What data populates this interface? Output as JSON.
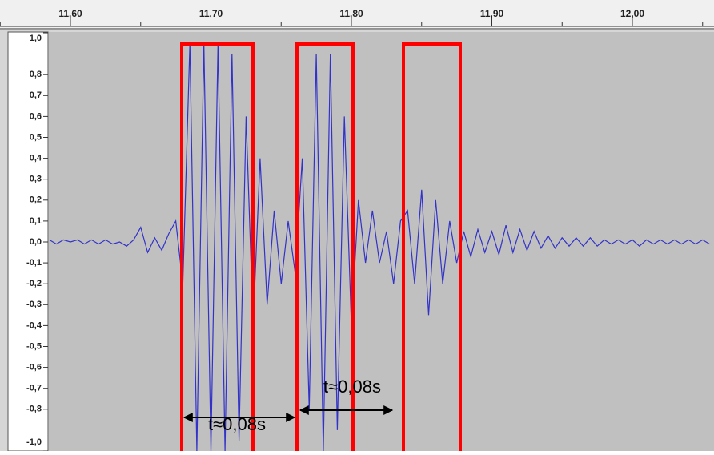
{
  "ruler": {
    "ticks": [
      {
        "value": 11.6,
        "label": "11,60"
      },
      {
        "value": 11.7,
        "label": "11,70"
      },
      {
        "value": 11.8,
        "label": "11,80"
      },
      {
        "value": 11.9,
        "label": "11,90"
      },
      {
        "value": 12.0,
        "label": "12,00"
      }
    ]
  },
  "amplitude_axis": {
    "ticks": [
      {
        "value": 1,
        "label": "1,0"
      },
      {
        "value": 0.8,
        "label": "0,8"
      },
      {
        "value": 0.7,
        "label": "0,7"
      },
      {
        "value": 0.6,
        "label": "0,6"
      },
      {
        "value": 0.5,
        "label": "0,5"
      },
      {
        "value": 0.4,
        "label": "0,4"
      },
      {
        "value": 0.3,
        "label": "0,3"
      },
      {
        "value": 0.2,
        "label": "0,2"
      },
      {
        "value": 0.1,
        "label": "0,1"
      },
      {
        "value": 0,
        "label": "0,0"
      },
      {
        "value": -0.1,
        "label": "-0,1"
      },
      {
        "value": -0.2,
        "label": "-0,2"
      },
      {
        "value": -0.3,
        "label": "-0,3"
      },
      {
        "value": -0.4,
        "label": "-0,4"
      },
      {
        "value": -0.5,
        "label": "-0,5"
      },
      {
        "value": -0.6,
        "label": "-0,6"
      },
      {
        "value": -0.7,
        "label": "-0,7"
      },
      {
        "value": -0.8,
        "label": "-0,8"
      },
      {
        "value": -1,
        "label": "-1,0"
      }
    ]
  },
  "annotations": [
    {
      "label": "t≈0,08s"
    },
    {
      "label": "t≈0,08s"
    }
  ],
  "waveform": {
    "x": [
      11.585,
      11.59,
      11.595,
      11.6,
      11.605,
      11.61,
      11.615,
      11.62,
      11.625,
      11.63,
      11.635,
      11.64,
      11.645,
      11.65,
      11.655,
      11.66,
      11.665,
      11.67,
      11.675,
      11.68,
      11.685,
      11.69,
      11.695,
      11.7,
      11.705,
      11.71,
      11.715,
      11.72,
      11.725,
      11.73,
      11.735,
      11.74,
      11.745,
      11.75,
      11.755,
      11.76,
      11.765,
      11.77,
      11.775,
      11.78,
      11.785,
      11.79,
      11.795,
      11.8,
      11.805,
      11.81,
      11.815,
      11.82,
      11.825,
      11.83,
      11.835,
      11.84,
      11.845,
      11.85,
      11.855,
      11.86,
      11.865,
      11.87,
      11.875,
      11.88,
      11.885,
      11.89,
      11.895,
      11.9,
      11.905,
      11.91,
      11.915,
      11.92,
      11.925,
      11.93,
      11.935,
      11.94,
      11.945,
      11.95,
      11.955,
      11.96,
      11.965,
      11.97,
      11.975,
      11.98,
      11.985,
      11.99,
      11.995,
      12.0,
      12.005,
      12.01,
      12.015,
      12.02,
      12.025,
      12.03,
      12.035,
      12.04,
      12.045,
      12.05,
      12.055
    ],
    "values": [
      0.01,
      -0.01,
      0.01,
      0,
      0.01,
      -0.01,
      0.01,
      -0.01,
      0.01,
      -0.01,
      0,
      -0.02,
      0.01,
      0.07,
      -0.05,
      0.02,
      -0.04,
      0.04,
      0.1,
      -0.2,
      0.95,
      -1,
      0.95,
      -1,
      0.95,
      -1,
      0.9,
      -0.95,
      0.6,
      -0.4,
      0.4,
      -0.3,
      0.15,
      -0.2,
      0.1,
      -0.15,
      0.4,
      -0.8,
      0.9,
      -1,
      0.9,
      -0.9,
      0.6,
      -0.4,
      0.2,
      -0.1,
      0.15,
      -0.1,
      0.05,
      -0.2,
      0.1,
      0.15,
      -0.2,
      0.25,
      -0.35,
      0.2,
      -0.2,
      0.1,
      -0.1,
      0.05,
      -0.07,
      0.06,
      -0.05,
      0.05,
      -0.06,
      0.08,
      -0.05,
      0.06,
      -0.04,
      0.05,
      -0.03,
      0.03,
      -0.03,
      0.02,
      -0.02,
      0.02,
      -0.02,
      0.02,
      -0.02,
      0.01,
      -0.01,
      0.01,
      -0.01,
      0.01,
      -0.02,
      0.01,
      -0.01,
      0.01,
      -0.01,
      0.01,
      -0.01,
      0.01,
      -0.01,
      0.01,
      -0.01
    ]
  }
}
